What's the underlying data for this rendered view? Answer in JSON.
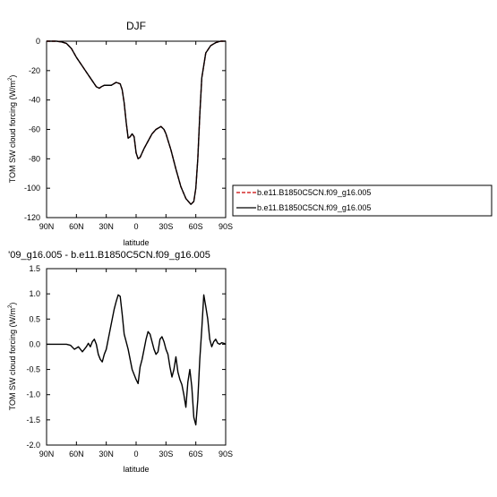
{
  "chart_data": [
    {
      "type": "line",
      "title": "DJF",
      "xlabel": "latitude",
      "ylabel": "TOM SW cloud forcing (W/m",
      "ylabel_sup": "2",
      "ylabel_close": ")",
      "xlim": [
        90,
        -90
      ],
      "ylim": [
        -120,
        0
      ],
      "xticks": [
        {
          "value": 90,
          "label": "90N"
        },
        {
          "value": 60,
          "label": "60N"
        },
        {
          "value": 30,
          "label": "30N"
        },
        {
          "value": 0,
          "label": "0"
        },
        {
          "value": -30,
          "label": "30S"
        },
        {
          "value": -60,
          "label": "60S"
        },
        {
          "value": -90,
          "label": "90S"
        }
      ],
      "yticks": [
        0,
        -20,
        -40,
        -60,
        -80,
        -100,
        -120
      ],
      "legend_position": "right, outside plot",
      "series": [
        {
          "name": "b.e11.B1850C5CN.f09_g16.005",
          "color": "#cc0000",
          "dash": "dashed",
          "x": [
            90,
            85,
            80,
            75,
            70,
            65,
            60,
            55,
            50,
            45,
            40,
            37,
            35,
            32,
            30,
            25,
            20,
            16,
            14,
            12,
            10,
            8,
            6,
            4,
            2,
            0,
            -2,
            -4,
            -6,
            -8,
            -12,
            -16,
            -20,
            -25,
            -28,
            -30,
            -35,
            -40,
            -45,
            -50,
            -55,
            -58,
            -60,
            -62,
            -64,
            -66,
            -70,
            -75,
            -80,
            -85,
            -90
          ],
          "y": [
            0,
            0,
            0,
            -0.5,
            -1.5,
            -5,
            -11,
            -16,
            -21,
            -26,
            -31,
            -32,
            -31,
            -30,
            -30,
            -30,
            -28,
            -29,
            -33,
            -42,
            -55,
            -66,
            -65,
            -63,
            -65,
            -76,
            -80,
            -79,
            -76,
            -73,
            -68,
            -63,
            -60,
            -58,
            -60,
            -63,
            -74,
            -87,
            -99,
            -107,
            -111,
            -109,
            -100,
            -80,
            -50,
            -25,
            -8,
            -3,
            -1,
            0,
            0
          ]
        },
        {
          "name": "b.e11.B1850C5CN.f09_g16.005",
          "color": "#000000",
          "dash": "solid",
          "x": [
            90,
            85,
            80,
            75,
            70,
            65,
            60,
            55,
            50,
            45,
            40,
            37,
            35,
            32,
            30,
            25,
            20,
            16,
            14,
            12,
            10,
            8,
            6,
            4,
            2,
            0,
            -2,
            -4,
            -6,
            -8,
            -12,
            -16,
            -20,
            -25,
            -28,
            -30,
            -35,
            -40,
            -45,
            -50,
            -55,
            -58,
            -60,
            -62,
            -64,
            -66,
            -70,
            -75,
            -80,
            -85,
            -90
          ],
          "y": [
            0,
            0,
            0,
            -0.5,
            -1.5,
            -5,
            -11,
            -16,
            -21,
            -26,
            -31,
            -32,
            -31,
            -30,
            -30,
            -30,
            -28,
            -29,
            -33,
            -42,
            -55,
            -66,
            -65,
            -63,
            -65,
            -76,
            -80,
            -79,
            -76,
            -73,
            -68,
            -63,
            -60,
            -58,
            -60,
            -63,
            -74,
            -87,
            -99,
            -107,
            -111,
            -109,
            -100,
            -80,
            -50,
            -25,
            -8,
            -3,
            -1,
            0,
            0
          ]
        }
      ]
    },
    {
      "type": "line",
      "title": "'09_g16.005 - b.e11.B1850C5CN.f09_g16.005",
      "xlabel": "latitude",
      "ylabel": "TOM SW cloud forcing (W/m",
      "ylabel_sup": "2",
      "ylabel_close": ")",
      "xlim": [
        90,
        -90
      ],
      "ylim": [
        -2.0,
        1.5
      ],
      "xticks": [
        {
          "value": 90,
          "label": "90N"
        },
        {
          "value": 60,
          "label": "60N"
        },
        {
          "value": 30,
          "label": "30N"
        },
        {
          "value": 0,
          "label": "0"
        },
        {
          "value": -30,
          "label": "30S"
        },
        {
          "value": -60,
          "label": "60S"
        },
        {
          "value": -90,
          "label": "90S"
        }
      ],
      "yticks": [
        {
          "value": 1.5,
          "label": "1.5"
        },
        {
          "value": 1.0,
          "label": "1.0"
        },
        {
          "value": 0.5,
          "label": "0.5"
        },
        {
          "value": 0.0,
          "label": "0.0"
        },
        {
          "value": -0.5,
          "label": "-0.5"
        },
        {
          "value": -1.0,
          "label": "-1.0"
        },
        {
          "value": -1.5,
          "label": "-1.5"
        },
        {
          "value": -2.0,
          "label": "-2.0"
        }
      ],
      "series": [
        {
          "color": "#000000",
          "dash": "solid",
          "x": [
            90,
            80,
            70,
            66,
            62,
            58,
            54,
            50,
            48,
            46,
            44,
            42,
            40,
            38,
            36,
            34,
            32,
            30,
            28,
            26,
            24,
            22,
            20,
            18,
            16,
            14,
            12,
            10,
            8,
            6,
            4,
            2,
            0,
            -2,
            -4,
            -6,
            -8,
            -10,
            -12,
            -14,
            -16,
            -18,
            -20,
            -22,
            -24,
            -26,
            -28,
            -30,
            -32,
            -34,
            -36,
            -38,
            -40,
            -42,
            -44,
            -46,
            -48,
            -50,
            -52,
            -54,
            -56,
            -58,
            -60,
            -62,
            -64,
            -66,
            -68,
            -70,
            -72,
            -74,
            -76,
            -78,
            -80,
            -82,
            -84,
            -86,
            -88,
            -90
          ],
          "y": [
            0,
            0,
            0,
            -0.02,
            -0.1,
            -0.05,
            -0.15,
            -0.05,
            0.02,
            -0.05,
            0.05,
            0.1,
            0,
            -0.2,
            -0.3,
            -0.35,
            -0.2,
            -0.1,
            0.1,
            0.3,
            0.5,
            0.7,
            0.85,
            0.98,
            0.95,
            0.6,
            0.2,
            0.05,
            -0.1,
            -0.3,
            -0.5,
            -0.6,
            -0.7,
            -0.78,
            -0.45,
            -0.3,
            -0.1,
            0.1,
            0.25,
            0.2,
            0.05,
            -0.1,
            -0.2,
            -0.15,
            0.1,
            0.15,
            0.05,
            -0.1,
            -0.2,
            -0.45,
            -0.65,
            -0.5,
            -0.25,
            -0.55,
            -0.7,
            -0.8,
            -1.0,
            -1.25,
            -0.75,
            -0.5,
            -0.85,
            -1.45,
            -1.6,
            -1.1,
            -0.3,
            0.3,
            0.98,
            0.75,
            0.5,
            0.1,
            -0.05,
            0.05,
            0.1,
            0.02,
            0,
            0.03,
            0.02,
            0
          ]
        }
      ]
    }
  ],
  "legend": {
    "entries": [
      {
        "label": "b.e11.B1850C5CN.f09_g16.005",
        "color": "#cc0000",
        "dash": "dashed"
      },
      {
        "label": "b.e11.B1850C5CN.f09_g16.005",
        "color": "#000000",
        "dash": "solid"
      }
    ]
  }
}
